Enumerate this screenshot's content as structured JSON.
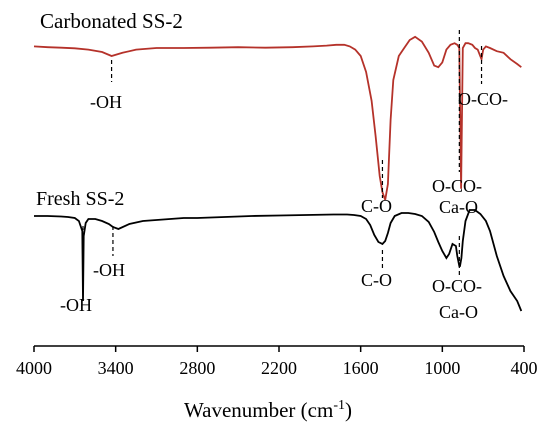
{
  "chart_data": {
    "type": "line",
    "xlabel": "Wavenumber (cm",
    "xlabel_sup": "-1",
    "xlabel_end": ")",
    "ylabel": "",
    "x_reversed": true,
    "xlim": [
      4000,
      400
    ],
    "x_ticks": [
      "4000",
      "3400",
      "2800",
      "2200",
      "1600",
      "1000",
      "400"
    ],
    "x_tick_values": [
      4000,
      3400,
      2800,
      2200,
      1600,
      1000,
      400
    ],
    "grid": false,
    "colors": {
      "carbonated": "#b5322a",
      "fresh": "#000000",
      "axis": "#000000"
    },
    "series": [
      {
        "name": "Carbonated SS-2",
        "x": [
          4000,
          3900,
          3800,
          3700,
          3600,
          3500,
          3430,
          3350,
          3250,
          3100,
          2900,
          2700,
          2500,
          2300,
          2100,
          1950,
          1850,
          1780,
          1720,
          1680,
          1640,
          1600,
          1560,
          1520,
          1490,
          1460,
          1440,
          1420,
          1400,
          1380,
          1360,
          1320,
          1280,
          1240,
          1200,
          1150,
          1100,
          1060,
          1030,
          1000,
          970,
          940,
          910,
          890,
          875,
          862,
          850,
          830,
          810,
          780,
          760,
          740,
          712,
          700,
          680,
          650,
          600,
          550,
          500,
          450,
          420
        ],
        "y": [
          0.04,
          0.045,
          0.048,
          0.052,
          0.06,
          0.075,
          0.1,
          0.08,
          0.06,
          0.05,
          0.05,
          0.048,
          0.045,
          0.048,
          0.045,
          0.04,
          0.035,
          0.03,
          0.03,
          0.04,
          0.06,
          0.1,
          0.2,
          0.38,
          0.6,
          0.85,
          0.95,
          1.0,
          0.9,
          0.5,
          0.25,
          0.1,
          0.05,
          0.0,
          -0.02,
          0.01,
          0.08,
          0.16,
          0.17,
          0.14,
          0.06,
          0.03,
          0.02,
          0.03,
          0.05,
          0.93,
          0.05,
          0.02,
          0.02,
          0.03,
          0.05,
          0.06,
          0.12,
          0.06,
          0.04,
          0.05,
          0.07,
          0.08,
          0.12,
          0.15,
          0.17
        ]
      },
      {
        "name": "Fresh SS-2",
        "x": [
          4000,
          3900,
          3800,
          3750,
          3700,
          3670,
          3645,
          3640,
          3635,
          3620,
          3600,
          3550,
          3500,
          3450,
          3420,
          3380,
          3300,
          3200,
          3100,
          3000,
          2900,
          2800,
          2600,
          2400,
          2200,
          2000,
          1800,
          1700,
          1650,
          1600,
          1560,
          1530,
          1500,
          1470,
          1440,
          1420,
          1400,
          1380,
          1350,
          1300,
          1250,
          1200,
          1150,
          1100,
          1060,
          1030,
          1000,
          970,
          950,
          925,
          900,
          890,
          875,
          870,
          860,
          850,
          830,
          800,
          760,
          720,
          680,
          650,
          600,
          550,
          500,
          450,
          420
        ],
        "y": [
          0.0,
          0.0,
          0.005,
          0.01,
          0.02,
          0.05,
          0.15,
          0.85,
          0.2,
          0.07,
          0.03,
          0.03,
          0.05,
          0.08,
          0.11,
          0.13,
          0.08,
          0.05,
          0.04,
          0.03,
          0.02,
          0.02,
          0.01,
          0.0,
          -0.005,
          -0.01,
          -0.015,
          -0.015,
          -0.01,
          0.0,
          0.03,
          0.09,
          0.19,
          0.26,
          0.28,
          0.25,
          0.17,
          0.07,
          0.0,
          -0.03,
          -0.03,
          -0.02,
          0.0,
          0.06,
          0.16,
          0.26,
          0.35,
          0.42,
          0.38,
          0.28,
          0.3,
          0.4,
          0.5,
          0.5,
          0.42,
          0.25,
          0.05,
          -0.06,
          -0.06,
          -0.02,
          0.05,
          0.15,
          0.4,
          0.6,
          0.75,
          0.85,
          0.95
        ]
      }
    ],
    "annotations": [
      {
        "id": "carb-oh",
        "text": "-OH",
        "x": 3430
      },
      {
        "id": "carb-co",
        "text": "C-O",
        "x": 1440
      },
      {
        "id": "carb-ococa",
        "text": "O-CO-",
        "text2": "Ca-O",
        "x": 875
      },
      {
        "id": "carb-oco712",
        "text": "O-CO-",
        "x": 712
      },
      {
        "id": "fresh-oh-sharp",
        "text": "-OH",
        "x": 3640
      },
      {
        "id": "fresh-oh-broad",
        "text": "-OH",
        "x": 3420
      },
      {
        "id": "fresh-co",
        "text": "C-O",
        "x": 1440
      },
      {
        "id": "fresh-ococa",
        "text": "O-CO-",
        "text2": "Ca-O",
        "x": 875
      }
    ]
  }
}
